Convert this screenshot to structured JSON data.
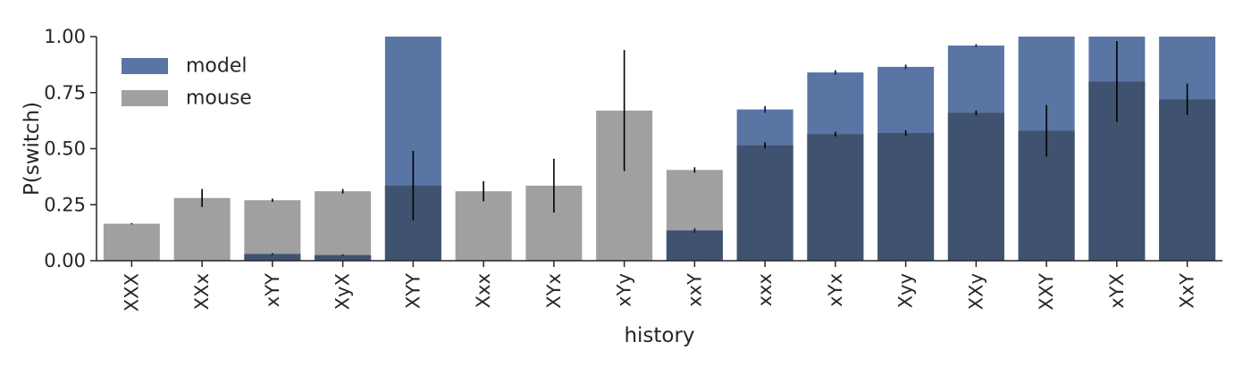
{
  "chart_data": {
    "type": "bar",
    "xlabel": "history",
    "ylabel": "P(switch)",
    "ylim": [
      0,
      1.0
    ],
    "yticks": [
      "0.00",
      "0.25",
      "0.50",
      "0.75",
      "1.00"
    ],
    "categories": [
      "XXX",
      "XXx",
      "xYY",
      "XyX",
      "XYY",
      "Xxx",
      "XYx",
      "xYy",
      "xxY",
      "xxx",
      "xYx",
      "Xyy",
      "XXy",
      "XXY",
      "xYX",
      "XxY"
    ],
    "legend_position": "top-left",
    "grid": false,
    "series": [
      {
        "name": "model",
        "color": "#5875a4",
        "values": [
          0.0,
          0.0,
          0.03,
          0.025,
          1.0,
          0.0,
          0.0,
          0.0,
          0.135,
          0.675,
          0.84,
          0.865,
          0.96,
          1.0,
          1.0,
          1.0
        ],
        "error": [
          0,
          0,
          0.004,
          0.004,
          0,
          0,
          0,
          0,
          0.01,
          0.015,
          0.01,
          0.01,
          0.006,
          0,
          0,
          0
        ]
      },
      {
        "name": "mouse",
        "color": "#a0a0a0",
        "values": [
          0.165,
          0.28,
          0.27,
          0.31,
          0.335,
          0.31,
          0.335,
          0.67,
          0.405,
          0.515,
          0.565,
          0.57,
          0.66,
          0.58,
          0.8,
          0.72
        ],
        "error": [
          0.003,
          0.04,
          0.007,
          0.01,
          0.155,
          0.045,
          0.12,
          0.27,
          0.012,
          0.013,
          0.01,
          0.012,
          0.01,
          0.115,
          0.18,
          0.07
        ]
      }
    ],
    "overlap_color": "#3f526f"
  }
}
